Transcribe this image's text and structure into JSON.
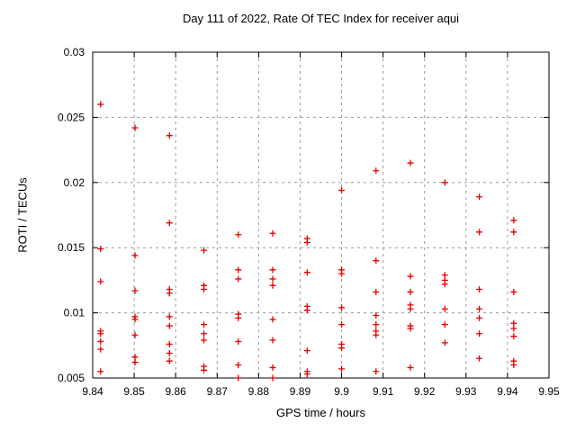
{
  "chart_data": {
    "type": "scatter",
    "title": "Day 111 of 2022, Rate Of TEC Index for receiver aqui",
    "xlabel": "GPS time / hours",
    "ylabel": "ROTI / TECUs",
    "xlim": [
      9.84,
      9.95
    ],
    "ylim": [
      0.005,
      0.03
    ],
    "xticks": [
      9.84,
      9.85,
      9.86,
      9.87,
      9.88,
      9.89,
      9.9,
      9.91,
      9.92,
      9.93,
      9.94,
      9.95
    ],
    "xtick_labels": [
      "9.84",
      "9.85",
      "9.86",
      "9.87",
      "9.88",
      "9.89",
      "9.9",
      "9.91",
      "9.92",
      "9.93",
      "9.94",
      "9.95"
    ],
    "yticks": [
      0.005,
      0.01,
      0.015,
      0.02,
      0.025,
      0.03
    ],
    "ytick_labels": [
      "0.005",
      "0.01",
      "0.015",
      "0.02",
      "0.025",
      "0.03"
    ],
    "grid": "dashed",
    "legend": "none",
    "marker": {
      "shape": "plus",
      "color": "#e60000",
      "size": 7
    },
    "frame_color": "#000000",
    "grid_color": "#9a9a9a",
    "series": [
      {
        "name": "ROTI",
        "points": [
          [
            9.8419,
            0.026
          ],
          [
            9.8419,
            0.0149
          ],
          [
            9.8419,
            0.0124
          ],
          [
            9.8419,
            0.0086
          ],
          [
            9.8419,
            0.0084
          ],
          [
            9.8419,
            0.0078
          ],
          [
            9.8419,
            0.0072
          ],
          [
            9.8419,
            0.0055
          ],
          [
            9.8502,
            0.0242
          ],
          [
            9.8502,
            0.0144
          ],
          [
            9.8502,
            0.0117
          ],
          [
            9.8502,
            0.0097
          ],
          [
            9.8502,
            0.0095
          ],
          [
            9.8502,
            0.0083
          ],
          [
            9.8502,
            0.0066
          ],
          [
            9.8502,
            0.0062
          ],
          [
            9.8585,
            0.0236
          ],
          [
            9.8585,
            0.0169
          ],
          [
            9.8585,
            0.0118
          ],
          [
            9.8585,
            0.0115
          ],
          [
            9.8585,
            0.0097
          ],
          [
            9.8585,
            0.009
          ],
          [
            9.8585,
            0.0076
          ],
          [
            9.8585,
            0.0069
          ],
          [
            9.8585,
            0.0063
          ],
          [
            9.8668,
            0.0148
          ],
          [
            9.8668,
            0.0121
          ],
          [
            9.8668,
            0.0118
          ],
          [
            9.8668,
            0.0091
          ],
          [
            9.8668,
            0.0084
          ],
          [
            9.8668,
            0.0079
          ],
          [
            9.8668,
            0.0059
          ],
          [
            9.8668,
            0.0056
          ],
          [
            9.8751,
            0.016
          ],
          [
            9.8751,
            0.0133
          ],
          [
            9.8751,
            0.0126
          ],
          [
            9.8751,
            0.0099
          ],
          [
            9.8751,
            0.0096
          ],
          [
            9.8751,
            0.0078
          ],
          [
            9.8751,
            0.006
          ],
          [
            9.8751,
            0.005
          ],
          [
            9.8834,
            0.0161
          ],
          [
            9.8834,
            0.0133
          ],
          [
            9.8834,
            0.0126
          ],
          [
            9.8834,
            0.0121
          ],
          [
            9.8834,
            0.0095
          ],
          [
            9.8834,
            0.0079
          ],
          [
            9.8834,
            0.0058
          ],
          [
            9.8834,
            0.005
          ],
          [
            9.8917,
            0.0157
          ],
          [
            9.8917,
            0.0154
          ],
          [
            9.8917,
            0.0131
          ],
          [
            9.8917,
            0.0105
          ],
          [
            9.8917,
            0.0102
          ],
          [
            9.8917,
            0.0071
          ],
          [
            9.8917,
            0.0055
          ],
          [
            9.8917,
            0.0053
          ],
          [
            9.9,
            0.0194
          ],
          [
            9.9,
            0.0133
          ],
          [
            9.9,
            0.013
          ],
          [
            9.9,
            0.0104
          ],
          [
            9.9,
            0.0091
          ],
          [
            9.9,
            0.0076
          ],
          [
            9.9,
            0.0073
          ],
          [
            9.9,
            0.0057
          ],
          [
            9.9083,
            0.0209
          ],
          [
            9.9083,
            0.014
          ],
          [
            9.9083,
            0.0116
          ],
          [
            9.9083,
            0.0098
          ],
          [
            9.9083,
            0.0091
          ],
          [
            9.9083,
            0.0086
          ],
          [
            9.9083,
            0.0083
          ],
          [
            9.9083,
            0.0055
          ],
          [
            9.9166,
            0.0215
          ],
          [
            9.9166,
            0.0128
          ],
          [
            9.9166,
            0.0116
          ],
          [
            9.9166,
            0.0106
          ],
          [
            9.9166,
            0.0103
          ],
          [
            9.9166,
            0.009
          ],
          [
            9.9166,
            0.0088
          ],
          [
            9.9166,
            0.0058
          ],
          [
            9.9249,
            0.02
          ],
          [
            9.9249,
            0.0129
          ],
          [
            9.9249,
            0.0125
          ],
          [
            9.9249,
            0.0122
          ],
          [
            9.9249,
            0.0103
          ],
          [
            9.9249,
            0.0091
          ],
          [
            9.9249,
            0.0077
          ],
          [
            9.9332,
            0.0189
          ],
          [
            9.9332,
            0.0162
          ],
          [
            9.9332,
            0.0118
          ],
          [
            9.9332,
            0.0103
          ],
          [
            9.9332,
            0.0096
          ],
          [
            9.9332,
            0.0084
          ],
          [
            9.9332,
            0.0065
          ],
          [
            9.9415,
            0.0171
          ],
          [
            9.9415,
            0.0162
          ],
          [
            9.9415,
            0.0116
          ],
          [
            9.9415,
            0.0092
          ],
          [
            9.9415,
            0.0088
          ],
          [
            9.9415,
            0.0082
          ],
          [
            9.9415,
            0.0063
          ],
          [
            9.9415,
            0.006
          ]
        ]
      }
    ]
  }
}
